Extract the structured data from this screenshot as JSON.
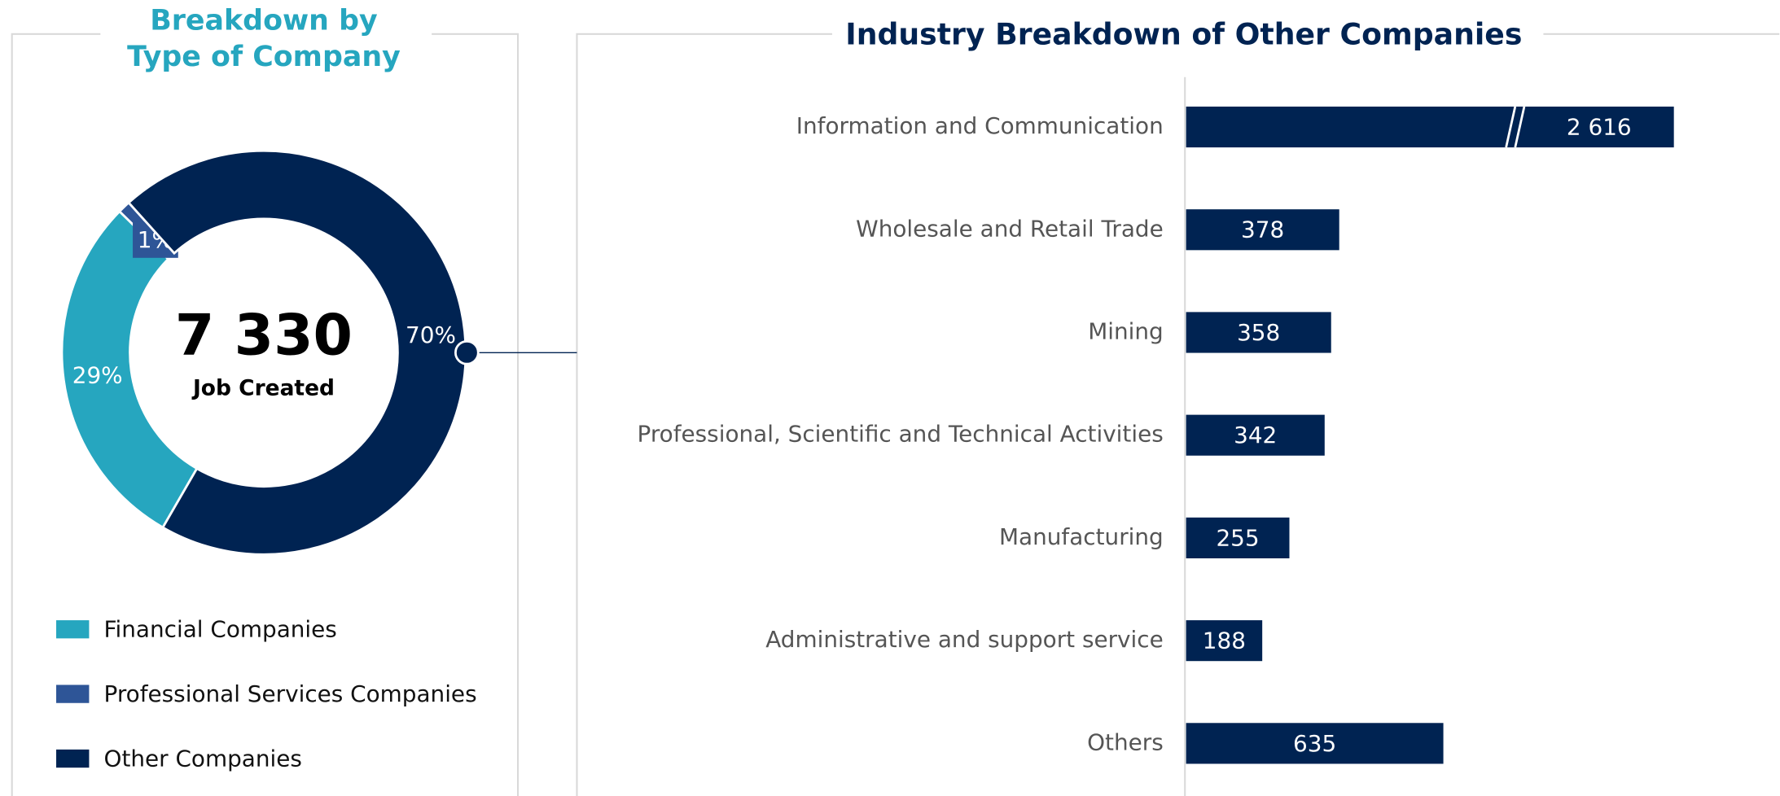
{
  "chart_data": [
    {
      "type": "donut",
      "title": [
        "Breakdown by",
        "Type of Company"
      ],
      "categories": [
        "Financial Companies",
        "Professional Services Companies",
        "Other Companies"
      ],
      "values": [
        29,
        1,
        70
      ],
      "value_labels": [
        "29%",
        "1%",
        "70%"
      ],
      "colors": [
        "#26a6bf",
        "#2e5597",
        "#002352"
      ],
      "center_value": "7 330",
      "center_label": "Job Created"
    },
    {
      "type": "bar",
      "title": "Industry Breakdown of Other Companies",
      "categories": [
        "Information and Communication",
        "Wholesale and Retail Trade",
        "Mining",
        "Professional, Scientific and Technical Activities",
        "Manufacturing",
        "Administrative and support service",
        "Others"
      ],
      "values": [
        2616,
        378,
        358,
        342,
        255,
        188,
        635
      ],
      "value_labels": [
        "2 616",
        "378",
        "358",
        "342",
        "255",
        "188",
        "635"
      ],
      "color": "#002352"
    }
  ]
}
